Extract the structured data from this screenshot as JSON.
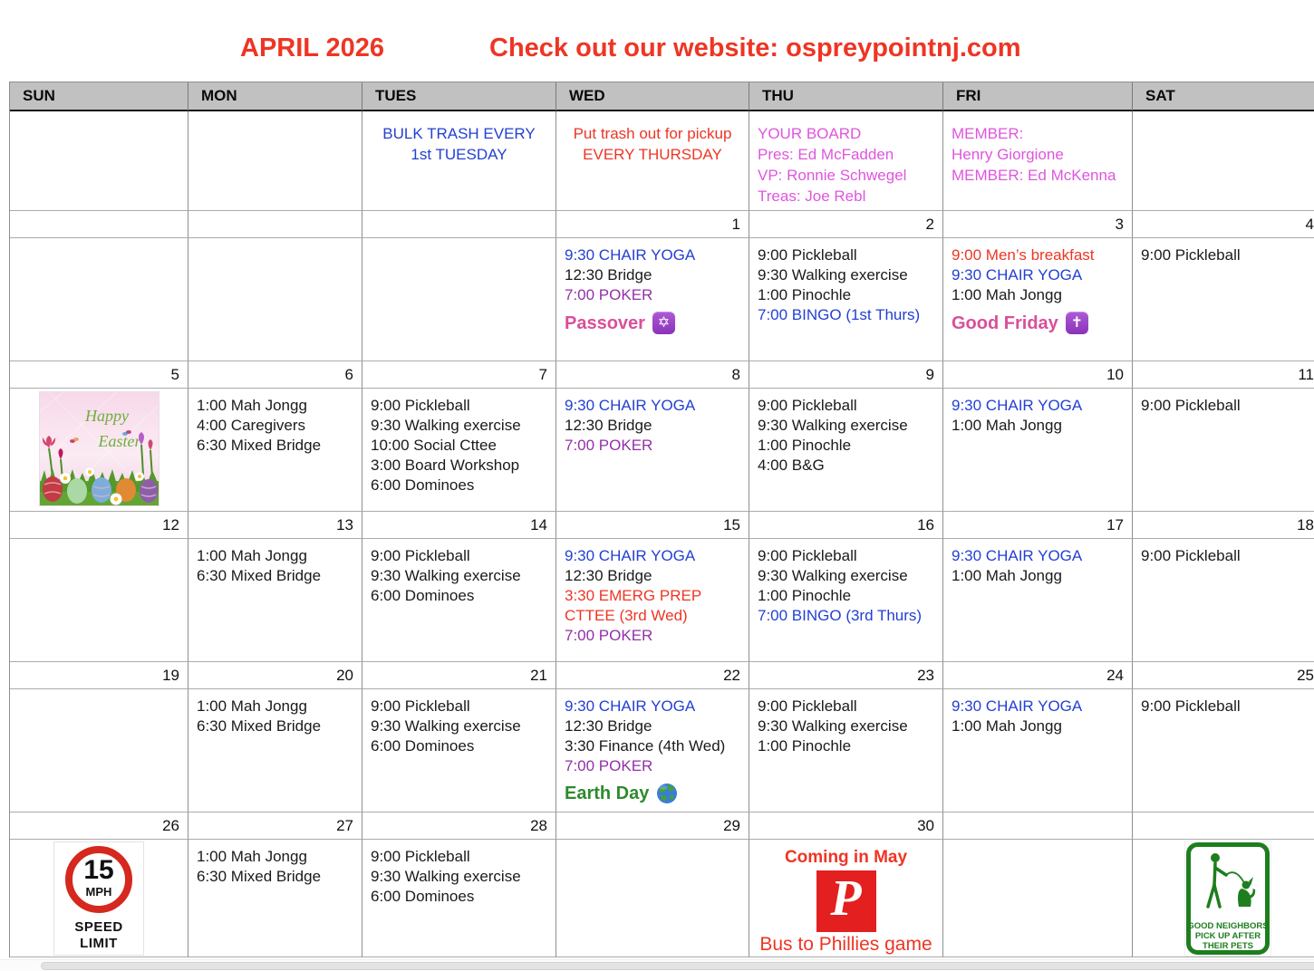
{
  "page": {
    "title": "APRIL 2026",
    "subtitle": "Check out our website: ospreypointnj.com"
  },
  "colors": {
    "title_red": "#EE3524",
    "event_blue": "#2340D2",
    "event_purple": "#9330A8",
    "event_red": "#EF3B2D",
    "board_magenta": "#DF55DF",
    "holiday_pink": "#D94F9B",
    "earth_green": "#2E8B2E",
    "header_gray": "#C1C1C1",
    "phillies_red": "#E3201F",
    "sign_green": "#1E7E1E",
    "speed_sign_red": "#D5281E"
  },
  "icons": {
    "star_of_david_glyph": "✡",
    "latin_cross_glyph": "✝"
  },
  "calendar": {
    "day_headers": [
      "SUN",
      "MON",
      "TUES",
      "WED",
      "THU",
      "FRI",
      "SAT"
    ],
    "notes": [
      null,
      null,
      {
        "align": "center",
        "color": "blue",
        "lines": [
          "BULK TRASH EVERY",
          "1st TUESDAY"
        ]
      },
      {
        "align": "center",
        "color": "red",
        "lines": [
          "Put trash out for pickup",
          "EVERY THURSDAY"
        ]
      },
      {
        "align": "left",
        "color": "magenta",
        "lines": [
          "YOUR BOARD",
          "Pres: Ed McFadden",
          "VP: Ronnie Schwegel",
          "Treas: Joe Rebl"
        ]
      },
      {
        "align": "left",
        "color": "magenta",
        "lines": [
          "MEMBER:",
          "Henry Giorgione",
          "MEMBER: Ed McKenna"
        ]
      },
      null
    ],
    "weeks": [
      {
        "dates": [
          "",
          "",
          "",
          "1",
          "2",
          "3",
          "4"
        ],
        "cells": [
          {},
          {},
          {},
          {
            "events": [
              {
                "text": "9:30 CHAIR YOGA",
                "color": "blue"
              },
              {
                "text": "12:30 Bridge",
                "color": "black"
              },
              {
                "text": "7:00 POKER",
                "color": "purple"
              }
            ],
            "holiday": {
              "label": "Passover",
              "icon": "star-of-david",
              "color": "pink"
            }
          },
          {
            "events": [
              {
                "text": "9:00 Pickleball",
                "color": "black"
              },
              {
                "text": "9:30 Walking exercise",
                "color": "black"
              },
              {
                "text": "1:00 Pinochle",
                "color": "black"
              },
              {
                "text": "7:00 BINGO (1st Thurs)",
                "color": "blue"
              }
            ]
          },
          {
            "events": [
              {
                "text": "9:00 Men’s breakfast",
                "color": "red"
              },
              {
                "text": "9:30 CHAIR YOGA",
                "color": "blue"
              },
              {
                "text": "1:00 Mah Jongg",
                "color": "black"
              }
            ],
            "holiday": {
              "label": "Good Friday",
              "icon": "latin-cross",
              "color": "pink"
            }
          },
          {
            "events": [
              {
                "text": "9:00 Pickleball",
                "color": "black"
              }
            ]
          }
        ]
      },
      {
        "dates": [
          "5",
          "6",
          "7",
          "8",
          "9",
          "10",
          "11"
        ],
        "cells": [
          {
            "image": "easter"
          },
          {
            "events": [
              {
                "text": "1:00 Mah Jongg",
                "color": "black"
              },
              {
                "text": "4:00 Caregivers",
                "color": "black"
              },
              {
                "text": "6:30 Mixed Bridge",
                "color": "black"
              }
            ]
          },
          {
            "events": [
              {
                "text": "9:00 Pickleball",
                "color": "black"
              },
              {
                "text": "9:30 Walking exercise",
                "color": "black"
              },
              {
                "text": "10:00 Social Cttee",
                "color": "black"
              },
              {
                "text": "3:00 Board Workshop",
                "color": "black"
              },
              {
                "text": "6:00 Dominoes",
                "color": "black"
              }
            ]
          },
          {
            "events": [
              {
                "text": "9:30 CHAIR YOGA",
                "color": "blue"
              },
              {
                "text": "12:30 Bridge",
                "color": "black"
              },
              {
                "text": "7:00 POKER",
                "color": "purple"
              }
            ]
          },
          {
            "events": [
              {
                "text": "9:00 Pickleball",
                "color": "black"
              },
              {
                "text": "9:30 Walking exercise",
                "color": "black"
              },
              {
                "text": "1:00 Pinochle",
                "color": "black"
              },
              {
                "text": "4:00 B&G",
                "color": "black"
              }
            ]
          },
          {
            "events": [
              {
                "text": "9:30 CHAIR YOGA",
                "color": "blue"
              },
              {
                "text": "1:00 Mah Jongg",
                "color": "black"
              }
            ]
          },
          {
            "events": [
              {
                "text": "9:00 Pickleball",
                "color": "black"
              }
            ]
          }
        ]
      },
      {
        "dates": [
          "12",
          "13",
          "14",
          "15",
          "16",
          "17",
          "18"
        ],
        "cells": [
          {},
          {
            "events": [
              {
                "text": "1:00 Mah Jongg",
                "color": "black"
              },
              {
                "text": "6:30 Mixed Bridge",
                "color": "black"
              }
            ]
          },
          {
            "events": [
              {
                "text": "9:00 Pickleball",
                "color": "black"
              },
              {
                "text": "9:30 Walking exercise",
                "color": "black"
              },
              {
                "text": "6:00 Dominoes",
                "color": "black"
              }
            ]
          },
          {
            "events": [
              {
                "text": "9:30 CHAIR YOGA",
                "color": "blue"
              },
              {
                "text": "12:30 Bridge",
                "color": "black"
              },
              {
                "text": "3:30 EMERG PREP",
                "color": "red"
              },
              {
                "text": "CTTEE (3rd Wed)",
                "color": "red"
              },
              {
                "text": "7:00 POKER",
                "color": "purple"
              }
            ]
          },
          {
            "events": [
              {
                "text": "9:00 Pickleball",
                "color": "black"
              },
              {
                "text": "9:30 Walking exercise",
                "color": "black"
              },
              {
                "text": "1:00 Pinochle",
                "color": "black"
              },
              {
                "text": "7:00 BINGO (3rd Thurs)",
                "color": "blue"
              }
            ]
          },
          {
            "events": [
              {
                "text": "9:30 CHAIR YOGA",
                "color": "blue"
              },
              {
                "text": "1:00 Mah Jongg",
                "color": "black"
              }
            ]
          },
          {
            "events": [
              {
                "text": "9:00 Pickleball",
                "color": "black"
              }
            ]
          }
        ]
      },
      {
        "dates": [
          "19",
          "20",
          "21",
          "22",
          "23",
          "24",
          "25"
        ],
        "cells": [
          {},
          {
            "events": [
              {
                "text": "1:00 Mah Jongg",
                "color": "black"
              },
              {
                "text": "6:30 Mixed Bridge",
                "color": "black"
              }
            ]
          },
          {
            "events": [
              {
                "text": "9:00 Pickleball",
                "color": "black"
              },
              {
                "text": "9:30 Walking exercise",
                "color": "black"
              },
              {
                "text": "6:00 Dominoes",
                "color": "black"
              }
            ]
          },
          {
            "events": [
              {
                "text": "9:30 CHAIR YOGA",
                "color": "blue"
              },
              {
                "text": "12:30 Bridge",
                "color": "black"
              },
              {
                "text": "3:30 Finance (4th Wed)",
                "color": "black"
              },
              {
                "text": "7:00 POKER",
                "color": "purple"
              }
            ],
            "holiday": {
              "label": "Earth Day",
              "icon": "globe",
              "color": "green"
            }
          },
          {
            "events": [
              {
                "text": "9:00 Pickleball",
                "color": "black"
              },
              {
                "text": "9:30 Walking exercise",
                "color": "black"
              },
              {
                "text": "1:00 Pinochle",
                "color": "black"
              }
            ]
          },
          {
            "events": [
              {
                "text": "9:30 CHAIR YOGA",
                "color": "blue"
              },
              {
                "text": "1:00 Mah Jongg",
                "color": "black"
              }
            ]
          },
          {
            "events": [
              {
                "text": "9:00 Pickleball",
                "color": "black"
              }
            ]
          }
        ]
      },
      {
        "dates": [
          "26",
          "27",
          "28",
          "29",
          "30",
          "",
          ""
        ],
        "cells": [
          {
            "image": "speed-sign"
          },
          {
            "events": [
              {
                "text": "1:00 Mah Jongg",
                "color": "black"
              },
              {
                "text": "6:30 Mixed Bridge",
                "color": "black"
              }
            ]
          },
          {
            "events": [
              {
                "text": "9:00 Pickleball",
                "color": "black"
              },
              {
                "text": "9:30 Walking exercise",
                "color": "black"
              },
              {
                "text": "6:00 Dominoes",
                "color": "black"
              }
            ]
          },
          {},
          {
            "image": "phillies"
          },
          {},
          {
            "image": "pets-sign"
          }
        ]
      }
    ]
  },
  "images": {
    "easter": {
      "line1": "Happy",
      "line2": "Easter"
    },
    "speed_sign": {
      "value": "15",
      "unit": "MPH",
      "caption_line1": "SPEED",
      "caption_line2": "LIMIT"
    },
    "phillies": {
      "header": "Coming in May",
      "letter": "P",
      "caption": "Bus to Phillies game"
    },
    "pets_sign": {
      "line1": "GOOD NEIGHBORS",
      "line2": "PICK UP AFTER",
      "line3": "THEIR PETS"
    }
  }
}
